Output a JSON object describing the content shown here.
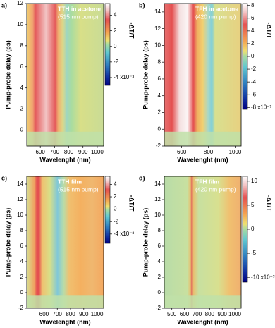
{
  "chart_data": [
    {
      "type": "heatmap",
      "panel_label": "a)",
      "annotations": [
        "TTH in acetone",
        "(515 nm pump)"
      ],
      "xlabel": "Wavelenght (nm)",
      "ylabel": "Pump-probe delay (ps)",
      "colorbar_label": "-ΔT/T",
      "xlim": [
        505,
        1045
      ],
      "xticks": [
        600,
        700,
        800,
        900,
        1000
      ],
      "ylim": [
        -1.5,
        12
      ],
      "yticks": [
        0,
        2,
        4,
        6,
        8,
        10,
        12
      ],
      "clim": [
        -5,
        5.5
      ],
      "cticks": [
        4,
        2,
        0,
        -2,
        {
          "value": -4,
          "label": "-4 x10⁻³"
        }
      ]
    },
    {
      "type": "heatmap",
      "panel_label": "b)",
      "annotations": [
        "TFH in acetone",
        "(420 nm pump)"
      ],
      "xlabel": "Wavelenght (nm)",
      "ylabel": "Pump-probe delay (ps)",
      "colorbar_label": "-ΔT/T",
      "xlim": [
        470,
        1045
      ],
      "xticks": [
        600,
        800,
        1000
      ],
      "ylim": [
        -2,
        15
      ],
      "yticks": [
        -2,
        0,
        2,
        4,
        6,
        8,
        10,
        12,
        14
      ],
      "clim": [
        -8.3,
        8.3
      ],
      "cticks": [
        8,
        6,
        4,
        2,
        0,
        -2,
        -4,
        -6,
        {
          "value": -8,
          "label": "-8 x10⁻³"
        }
      ]
    },
    {
      "type": "heatmap",
      "panel_label": "c)",
      "annotations": [
        "TTH film",
        "(515 nm pump)"
      ],
      "xlabel": "Wavelenght (nm)",
      "ylabel": "Pump-probe delay (ps)",
      "colorbar_label": "-ΔT/T",
      "xlim": [
        470,
        1050
      ],
      "xticks": [
        600,
        700,
        800,
        900,
        1000
      ],
      "ylim": [
        -2,
        15
      ],
      "yticks": [
        -2,
        0,
        2,
        4,
        6,
        8,
        10,
        12,
        14
      ],
      "clim": [
        -5.5,
        5.3
      ],
      "cticks": [
        4,
        2,
        0,
        -2,
        {
          "value": -4,
          "label": "-4 x10⁻³"
        }
      ]
    },
    {
      "type": "heatmap",
      "panel_label": "d)",
      "annotations": [
        "TFH film",
        "(420 nm pump)"
      ],
      "xlabel": "Wavelenght (nm)",
      "ylabel": "Pump-probe delay (ps)",
      "colorbar_label": "-ΔT/T",
      "xlim": [
        440,
        1050
      ],
      "xticks": [
        500,
        600,
        700,
        800,
        900,
        1000
      ],
      "ylim": [
        -2,
        15
      ],
      "yticks": [
        -2,
        0,
        2,
        4,
        6,
        8,
        10,
        12,
        14
      ],
      "clim": [
        -11,
        11
      ],
      "cticks": [
        10,
        5,
        0,
        -5,
        {
          "value": -10,
          "label": "-10 x10⁻³"
        }
      ]
    }
  ]
}
